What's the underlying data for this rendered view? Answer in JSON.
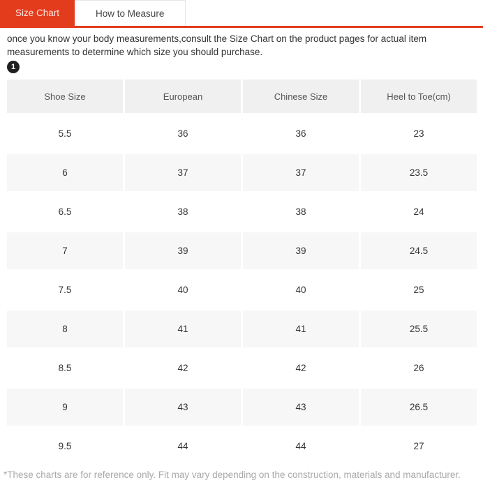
{
  "tabs": [
    {
      "label": "Size Chart",
      "active": true
    },
    {
      "label": "How to Measure",
      "active": false
    }
  ],
  "intro": "once you know your body measurements,consult the Size Chart on the product pages for actual item measurements to determine which size you should purchase.",
  "badge": "1",
  "table": {
    "headers": [
      "Shoe Size",
      "European",
      "Chinese Size",
      "Heel to Toe(cm)"
    ],
    "rows": [
      [
        "5.5",
        "36",
        "36",
        "23"
      ],
      [
        "6",
        "37",
        "37",
        "23.5"
      ],
      [
        "6.5",
        "38",
        "38",
        "24"
      ],
      [
        "7",
        "39",
        "39",
        "24.5"
      ],
      [
        "7.5",
        "40",
        "40",
        "25"
      ],
      [
        "8",
        "41",
        "41",
        "25.5"
      ],
      [
        "8.5",
        "42",
        "42",
        "26"
      ],
      [
        "9",
        "43",
        "43",
        "26.5"
      ],
      [
        "9.5",
        "44",
        "44",
        "27"
      ]
    ]
  },
  "footnote": "*These charts are for reference only. Fit may vary depending on the construction, materials and manufacturer.",
  "colors": {
    "accent_red": "#e23c1d",
    "header_bg": "#f0f0f0",
    "alt_row_bg": "#f7f7f7",
    "badge_bg": "#1f1f1f",
    "intro_text": "#333333",
    "footnote_gray": "#a9a9a9"
  }
}
